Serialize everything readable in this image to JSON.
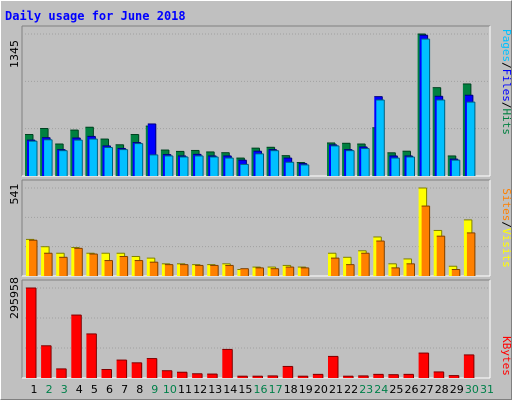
{
  "title": "Daily usage for June 2018",
  "colors": {
    "hits": "#008040",
    "files": "#0000ff",
    "pages": "#00c0ff",
    "visits": "#ffff00",
    "sites": "#ff8000",
    "kbytes": "#ff0000",
    "weekend": "#00804a",
    "weekday": "#000000"
  },
  "legend": {
    "pages": "Pages",
    "files": "Files",
    "hits": "Hits",
    "sites": "Sites",
    "visits": "Visits",
    "kbytes": "KBytes",
    "sep": "/"
  },
  "chart_data": [
    {
      "type": "bar",
      "title": "Hits / Files / Pages",
      "ymax_label": "1345",
      "ylim": [
        0,
        1345
      ],
      "categories": [
        "1",
        "2",
        "3",
        "4",
        "5",
        "6",
        "7",
        "8",
        "9",
        "10",
        "11",
        "12",
        "13",
        "14",
        "15",
        "16",
        "17",
        "18",
        "19",
        "20",
        "21",
        "22",
        "23",
        "24",
        "25",
        "26",
        "27",
        "28",
        "29",
        "30",
        "31"
      ],
      "weekend_days": [
        "2",
        "3",
        "9",
        "10",
        "16",
        "17",
        "23",
        "24",
        "30",
        "31"
      ],
      "series": [
        {
          "name": "Hits",
          "values": [
            393,
            450,
            303,
            435,
            462,
            350,
            296,
            393,
            473,
            246,
            233,
            242,
            228,
            221,
            170,
            264,
            272,
            193,
            128,
            0,
            313,
            310,
            303,
            457,
            220,
            235,
            1345,
            837,
            190,
            872,
            0
          ]
        },
        {
          "name": "Files",
          "values": [
            340,
            363,
            250,
            360,
            375,
            285,
            261,
            317,
            493,
            203,
            190,
            205,
            190,
            190,
            150,
            235,
            250,
            170,
            118,
            0,
            295,
            250,
            275,
            752,
            190,
            190,
            1333,
            755,
            160,
            765,
            0
          ]
        },
        {
          "name": "Pages",
          "values": [
            330,
            343,
            240,
            340,
            350,
            270,
            250,
            307,
            200,
            190,
            180,
            190,
            180,
            170,
            110,
            210,
            240,
            130,
            105,
            0,
            285,
            240,
            260,
            720,
            170,
            180,
            1297,
            720,
            150,
            700,
            0
          ]
        }
      ]
    },
    {
      "type": "bar",
      "title": "Visits / Sites",
      "ymax_label": "541",
      "ylim": [
        0,
        541
      ],
      "categories": [
        "1",
        "2",
        "3",
        "4",
        "5",
        "6",
        "7",
        "8",
        "9",
        "10",
        "11",
        "12",
        "13",
        "14",
        "15",
        "16",
        "17",
        "18",
        "19",
        "20",
        "21",
        "22",
        "23",
        "24",
        "25",
        "26",
        "27",
        "28",
        "29",
        "30",
        "31"
      ],
      "series": [
        {
          "name": "Visits",
          "values": [
            225,
            180,
            140,
            175,
            140,
            140,
            140,
            120,
            110,
            75,
            75,
            70,
            70,
            75,
            40,
            55,
            55,
            65,
            55,
            0,
            140,
            115,
            155,
            240,
            75,
            105,
            541,
            280,
            60,
            345,
            0
          ],
          "label": "Visits"
        },
        {
          "name": "Sites",
          "values": [
            220,
            140,
            115,
            170,
            135,
            95,
            120,
            95,
            85,
            70,
            70,
            65,
            65,
            65,
            45,
            50,
            45,
            55,
            50,
            0,
            110,
            70,
            140,
            215,
            50,
            75,
            430,
            245,
            40,
            265,
            0
          ]
        }
      ]
    },
    {
      "type": "bar",
      "title": "KBytes",
      "ymax_label": "295958",
      "ylim": [
        0,
        295958
      ],
      "categories": [
        "1",
        "2",
        "3",
        "4",
        "5",
        "6",
        "7",
        "8",
        "9",
        "10",
        "11",
        "12",
        "13",
        "14",
        "15",
        "16",
        "17",
        "18",
        "19",
        "20",
        "21",
        "22",
        "23",
        "24",
        "25",
        "26",
        "27",
        "28",
        "29",
        "30",
        "31"
      ],
      "series": [
        {
          "name": "KBytes",
          "values": [
            295958,
            106000,
            30000,
            207000,
            145000,
            28000,
            59000,
            50000,
            64000,
            24000,
            19000,
            14000,
            13000,
            94000,
            6000,
            6000,
            7000,
            38000,
            6000,
            12000,
            71000,
            6000,
            7000,
            12000,
            11000,
            12000,
            82000,
            20000,
            8000,
            76000,
            0
          ]
        }
      ]
    }
  ]
}
